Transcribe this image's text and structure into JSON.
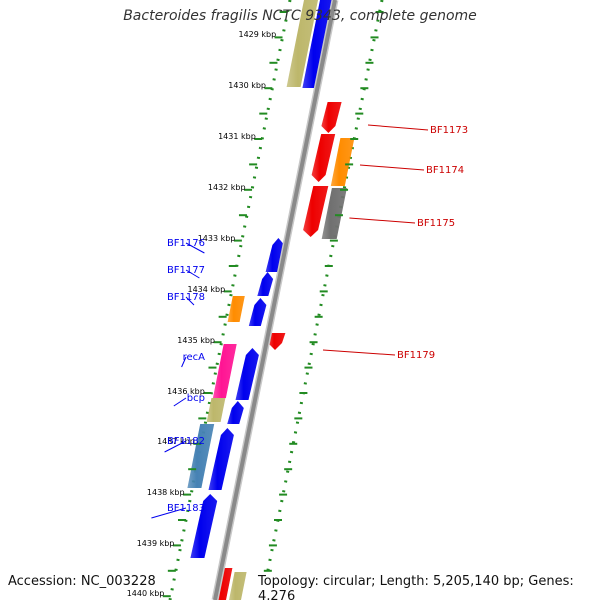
{
  "title": "Bacteroides fragilis NCTC 9343, complete genome",
  "accession": "Accession: NC_003228",
  "summary": "Topology: circular; Length: 5,205,140 bp; Genes: 4,276",
  "ticks": [
    {
      "label": "1429 kbp"
    },
    {
      "label": "1430 kbp"
    },
    {
      "label": "1431 kbp"
    },
    {
      "label": "1432 kbp"
    },
    {
      "label": "1433 kbp"
    },
    {
      "label": "1434 kbp"
    },
    {
      "label": "1435 kbp"
    },
    {
      "label": "1436 kbp"
    },
    {
      "label": "1437 kbp"
    },
    {
      "label": "1438 kbp"
    },
    {
      "label": "1439 kbp"
    },
    {
      "label": "1440 kbp"
    }
  ],
  "genes_left": [
    {
      "label": "BF1176",
      "color": "#0000ee"
    },
    {
      "label": "BF1177",
      "color": "#0000ee"
    },
    {
      "label": "BF1178",
      "color": "#0000ee"
    },
    {
      "label": "recA",
      "color": "#0000ee"
    },
    {
      "label": "bcp",
      "color": "#0000ee"
    },
    {
      "label": "BF1182",
      "color": "#0000ee"
    },
    {
      "label": "BF1183",
      "color": "#0000ee"
    }
  ],
  "genes_right": [
    {
      "label": "BF1173",
      "color": "#cc0000"
    },
    {
      "label": "BF1174",
      "color": "#cc0000"
    },
    {
      "label": "BF1175",
      "color": "#cc0000"
    },
    {
      "label": "BF1179",
      "color": "#cc0000"
    }
  ],
  "colors": {
    "backbone": "#8a8a8a",
    "tick_line": "#228b22",
    "forward_gene": "#0000ee",
    "reverse_gene": "#ee0000",
    "orange_gene": "#ff8c00",
    "khaki_gene": "#bdb76b",
    "pink_gene": "#ff1493",
    "steelblue_gene": "#4682b4",
    "gray_gene": "#707070"
  }
}
